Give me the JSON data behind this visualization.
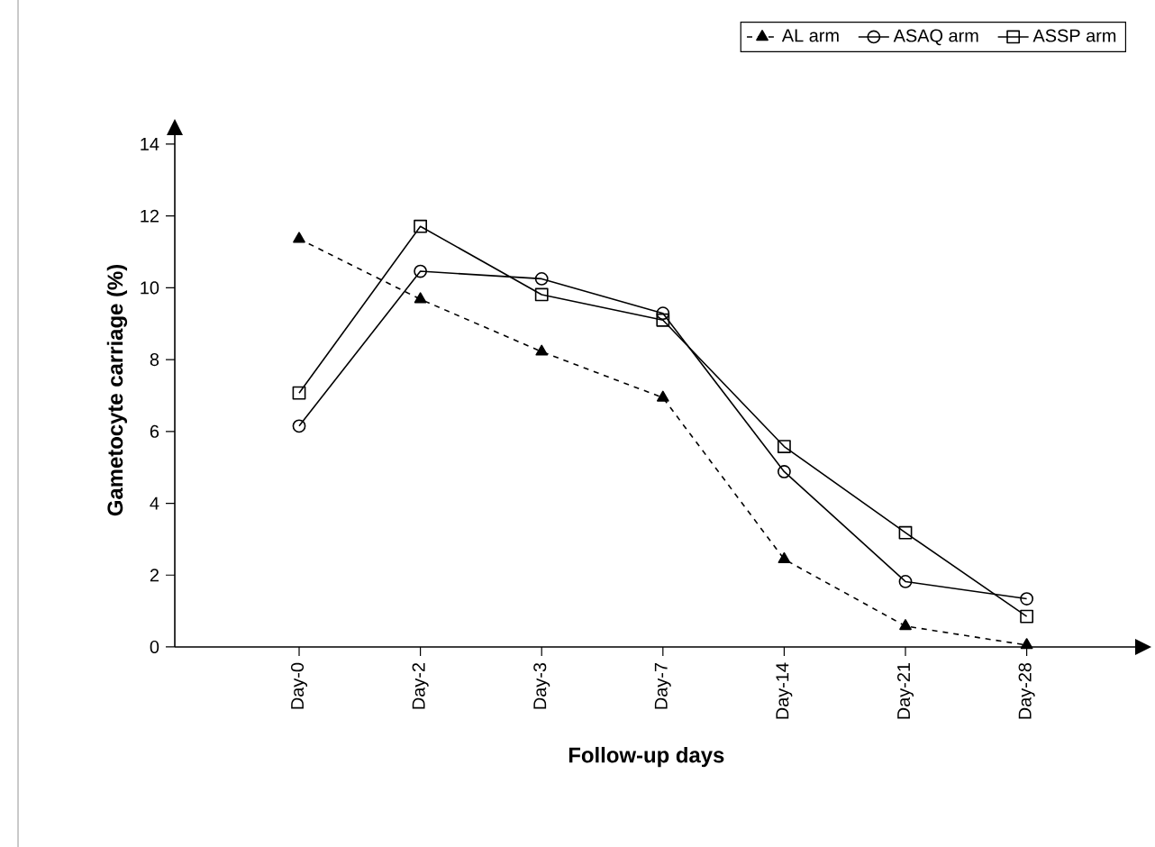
{
  "chart_data": {
    "type": "line",
    "xlabel": "Follow-up days",
    "ylabel": "Gametocyte carriage (%)",
    "categories": [
      "Day-0",
      "Day-2",
      "Day-3",
      "Day-7",
      "Day-14",
      "Day-21",
      "Day-28"
    ],
    "series": [
      {
        "name": "AL arm",
        "color": "#000000",
        "marker": "triangle",
        "line_style": "dashed",
        "values": [
          11.36,
          9.68,
          8.22,
          6.94,
          2.44,
          0.58,
          0.05
        ]
      },
      {
        "name": "ASAQ arm",
        "color": "#000000",
        "marker": "circle",
        "line_style": "solid",
        "values": [
          6.15,
          10.46,
          10.25,
          9.29,
          4.88,
          1.82,
          1.34
        ]
      },
      {
        "name": "ASSP arm",
        "color": "#000000",
        "marker": "square",
        "line_style": "solid",
        "values": [
          7.07,
          11.71,
          9.81,
          9.1,
          5.58,
          3.18,
          0.85
        ]
      }
    ],
    "ylim": [
      0,
      14.3
    ],
    "yticks": [
      0,
      2,
      4,
      6,
      8,
      10,
      12,
      14
    ],
    "grid": false,
    "legend": "top right"
  }
}
